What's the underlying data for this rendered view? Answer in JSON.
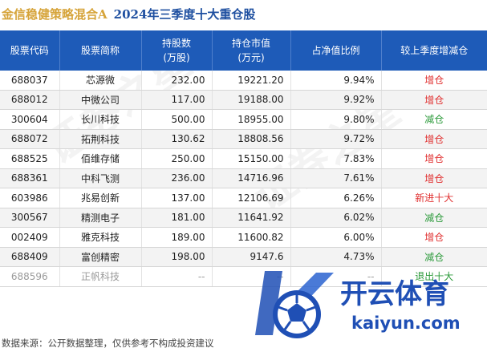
{
  "title": {
    "fund_name": "金信稳健策略混合A",
    "subtitle": "2024年三季度十大重仓股"
  },
  "table": {
    "headers": [
      "股票代码",
      "股票简称",
      "持股数\n(万股)",
      "持仓市值\n(万元)",
      "占净值比例",
      "较上季度增减仓"
    ],
    "rows": [
      {
        "code": "688037",
        "name": "芯源微",
        "shares": "232.00",
        "value": "19221.20",
        "ratio": "9.94%",
        "change": "增仓",
        "change_color": "#e03030"
      },
      {
        "code": "688012",
        "name": "中微公司",
        "shares": "117.00",
        "value": "19188.00",
        "ratio": "9.92%",
        "change": "增仓",
        "change_color": "#e03030"
      },
      {
        "code": "300604",
        "name": "长川科技",
        "shares": "500.00",
        "value": "18955.00",
        "ratio": "9.80%",
        "change": "减仓",
        "change_color": "#2b9a3a"
      },
      {
        "code": "688072",
        "name": "拓荆科技",
        "shares": "130.62",
        "value": "18808.56",
        "ratio": "9.72%",
        "change": "增仓",
        "change_color": "#e03030"
      },
      {
        "code": "688525",
        "name": "佰维存储",
        "shares": "250.00",
        "value": "15150.00",
        "ratio": "7.83%",
        "change": "增仓",
        "change_color": "#e03030"
      },
      {
        "code": "688361",
        "name": "中科飞测",
        "shares": "236.00",
        "value": "14716.96",
        "ratio": "7.61%",
        "change": "增仓",
        "change_color": "#e03030"
      },
      {
        "code": "603986",
        "name": "兆易创新",
        "shares": "137.00",
        "value": "12106.69",
        "ratio": "6.26%",
        "change": "新进十大",
        "change_color": "#e03030"
      },
      {
        "code": "300567",
        "name": "精测电子",
        "shares": "181.00",
        "value": "11641.92",
        "ratio": "6.02%",
        "change": "减仓",
        "change_color": "#2b9a3a"
      },
      {
        "code": "002409",
        "name": "雅克科技",
        "shares": "189.00",
        "value": "11600.82",
        "ratio": "6.00%",
        "change": "增仓",
        "change_color": "#e03030"
      },
      {
        "code": "688409",
        "name": "富创精密",
        "shares": "198.00",
        "value": "9147.6",
        "ratio": "4.73%",
        "change": "减仓",
        "change_color": "#2b9a3a"
      },
      {
        "code": "688596",
        "name": "正帆科技",
        "shares": "--",
        "value": "--",
        "ratio": "--",
        "change": "退出十大",
        "change_color": "#2b9a3a",
        "faded": true
      }
    ]
  },
  "footer": "数据来源：公开数据整理，仅供参考不构成投资建议",
  "watermark": "证券之星",
  "logo": {
    "brand": "开云体育",
    "domain": "kaiyun.com",
    "icon": "soccer-ball-icon"
  }
}
